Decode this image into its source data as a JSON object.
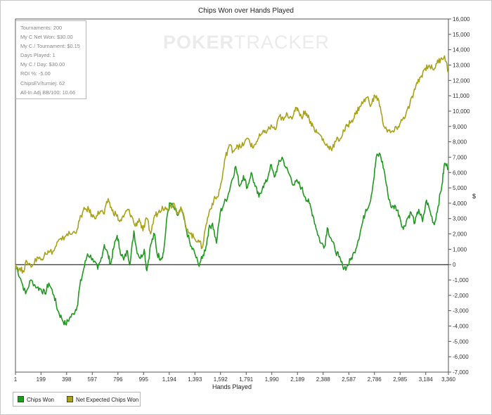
{
  "chart_data": {
    "type": "line",
    "title": "Chips Won over Hands Played",
    "xlabel": "Hands Played",
    "ylabel": "$",
    "xlim": [
      1,
      3360
    ],
    "ylim": [
      -7000,
      16000
    ],
    "x_ticks": [
      1,
      199,
      398,
      597,
      796,
      995,
      1194,
      1393,
      1592,
      1791,
      1990,
      2189,
      2388,
      2587,
      2786,
      2985,
      3184,
      3360
    ],
    "x_tick_labels": [
      "1",
      "199",
      "398",
      "597",
      "796",
      "995",
      "1,194",
      "1,393",
      "1,592",
      "1,791",
      "1,990",
      "2,189",
      "2,388",
      "2,587",
      "2,786",
      "2,985",
      "3,184",
      "3,360"
    ],
    "y_ticks": [
      -7000,
      -6000,
      -5000,
      -4000,
      -3000,
      -2000,
      -1000,
      0,
      1000,
      2000,
      3000,
      4000,
      5000,
      6000,
      7000,
      8000,
      9000,
      10000,
      11000,
      12000,
      13000,
      14000,
      15000,
      16000
    ],
    "y_tick_labels": [
      "-7,000",
      "-6,000",
      "-5,000",
      "-4,000",
      "-3,000",
      "-2,000",
      "-1,000",
      "0",
      "1,000",
      "2,000",
      "3,000",
      "4,000",
      "5,000",
      "6,000",
      "7,000",
      "8,000",
      "9,000",
      "10,000",
      "11,000",
      "12,000",
      "13,000",
      "14,000",
      "15,000",
      "16,000"
    ],
    "grid": false,
    "zero_line": true,
    "legend_position": "bottom-left",
    "series": [
      {
        "name": "Chips Won",
        "color": "#1f9a1f",
        "points": [
          [
            1,
            0
          ],
          [
            40,
            -900
          ],
          [
            80,
            -1900
          ],
          [
            120,
            -1000
          ],
          [
            170,
            -1500
          ],
          [
            200,
            -1600
          ],
          [
            230,
            -1900
          ],
          [
            260,
            -1200
          ],
          [
            300,
            -2000
          ],
          [
            330,
            -3000
          ],
          [
            360,
            -3500
          ],
          [
            390,
            -3900
          ],
          [
            420,
            -3500
          ],
          [
            450,
            -3200
          ],
          [
            480,
            -2700
          ],
          [
            500,
            -1400
          ],
          [
            530,
            -300
          ],
          [
            560,
            700
          ],
          [
            600,
            400
          ],
          [
            640,
            -300
          ],
          [
            660,
            200
          ],
          [
            690,
            1300
          ],
          [
            720,
            600
          ],
          [
            740,
            0
          ],
          [
            760,
            1000
          ],
          [
            790,
            1900
          ],
          [
            810,
            1000
          ],
          [
            840,
            300
          ],
          [
            870,
            900
          ],
          [
            890,
            0
          ],
          [
            920,
            2200
          ],
          [
            940,
            1000
          ],
          [
            970,
            400
          ],
          [
            1000,
            1000
          ],
          [
            1020,
            -400
          ],
          [
            1050,
            1300
          ],
          [
            1080,
            2000
          ],
          [
            1100,
            700
          ],
          [
            1130,
            400
          ],
          [
            1150,
            800
          ],
          [
            1180,
            3300
          ],
          [
            1200,
            4000
          ],
          [
            1230,
            3700
          ],
          [
            1260,
            3200
          ],
          [
            1290,
            3600
          ],
          [
            1320,
            2500
          ],
          [
            1360,
            1200
          ],
          [
            1390,
            800
          ],
          [
            1420,
            0
          ],
          [
            1450,
            400
          ],
          [
            1480,
            1200
          ],
          [
            1500,
            2300
          ],
          [
            1530,
            2700
          ],
          [
            1560,
            1400
          ],
          [
            1590,
            3400
          ],
          [
            1620,
            4000
          ],
          [
            1650,
            4500
          ],
          [
            1680,
            5500
          ],
          [
            1710,
            6400
          ],
          [
            1740,
            5100
          ],
          [
            1770,
            5800
          ],
          [
            1800,
            5000
          ],
          [
            1830,
            6000
          ],
          [
            1860,
            5100
          ],
          [
            1890,
            4400
          ],
          [
            1920,
            5100
          ],
          [
            1950,
            5400
          ],
          [
            1980,
            6500
          ],
          [
            2010,
            5700
          ],
          [
            2040,
            6500
          ],
          [
            2070,
            7000
          ],
          [
            2100,
            6300
          ],
          [
            2130,
            5800
          ],
          [
            2160,
            5200
          ],
          [
            2190,
            5400
          ],
          [
            2220,
            5000
          ],
          [
            2250,
            4400
          ],
          [
            2280,
            4000
          ],
          [
            2310,
            3200
          ],
          [
            2340,
            2200
          ],
          [
            2370,
            1400
          ],
          [
            2400,
            1200
          ],
          [
            2420,
            2400
          ],
          [
            2450,
            1700
          ],
          [
            2480,
            1000
          ],
          [
            2510,
            500
          ],
          [
            2540,
            -100
          ],
          [
            2570,
            -200
          ],
          [
            2600,
            300
          ],
          [
            2630,
            800
          ],
          [
            2660,
            1600
          ],
          [
            2690,
            2600
          ],
          [
            2720,
            3600
          ],
          [
            2750,
            4000
          ],
          [
            2780,
            5500
          ],
          [
            2800,
            7000
          ],
          [
            2830,
            7200
          ],
          [
            2860,
            6200
          ],
          [
            2890,
            4600
          ],
          [
            2920,
            3700
          ],
          [
            2950,
            3800
          ],
          [
            2980,
            3200
          ],
          [
            3010,
            2300
          ],
          [
            3040,
            3000
          ],
          [
            3070,
            3400
          ],
          [
            3100,
            2700
          ],
          [
            3130,
            3600
          ],
          [
            3160,
            2800
          ],
          [
            3190,
            4200
          ],
          [
            3220,
            3400
          ],
          [
            3250,
            2600
          ],
          [
            3280,
            3800
          ],
          [
            3310,
            5200
          ],
          [
            3330,
            6600
          ],
          [
            3360,
            6300
          ]
        ]
      },
      {
        "name": "Net Expected Chips Won",
        "color": "#a9a21a",
        "points": [
          [
            1,
            0
          ],
          [
            30,
            -300
          ],
          [
            60,
            -400
          ],
          [
            90,
            200
          ],
          [
            130,
            -100
          ],
          [
            170,
            500
          ],
          [
            200,
            300
          ],
          [
            230,
            800
          ],
          [
            260,
            800
          ],
          [
            300,
            900
          ],
          [
            330,
            1500
          ],
          [
            360,
            1600
          ],
          [
            400,
            2000
          ],
          [
            440,
            2000
          ],
          [
            480,
            2300
          ],
          [
            510,
            3200
          ],
          [
            540,
            3600
          ],
          [
            570,
            3600
          ],
          [
            600,
            3100
          ],
          [
            630,
            3200
          ],
          [
            660,
            3500
          ],
          [
            690,
            3300
          ],
          [
            720,
            4300
          ],
          [
            750,
            3500
          ],
          [
            780,
            3300
          ],
          [
            810,
            2800
          ],
          [
            840,
            3100
          ],
          [
            870,
            3600
          ],
          [
            900,
            3200
          ],
          [
            930,
            2500
          ],
          [
            960,
            3000
          ],
          [
            990,
            2200
          ],
          [
            1020,
            3000
          ],
          [
            1050,
            2000
          ],
          [
            1080,
            3200
          ],
          [
            1110,
            3400
          ],
          [
            1140,
            3800
          ],
          [
            1170,
            3600
          ],
          [
            1200,
            3800
          ],
          [
            1230,
            4000
          ],
          [
            1260,
            3400
          ],
          [
            1290,
            3600
          ],
          [
            1320,
            2600
          ],
          [
            1360,
            2000
          ],
          [
            1390,
            1700
          ],
          [
            1420,
            1600
          ],
          [
            1450,
            1100
          ],
          [
            1480,
            2600
          ],
          [
            1510,
            3600
          ],
          [
            1540,
            4200
          ],
          [
            1570,
            4400
          ],
          [
            1600,
            5400
          ],
          [
            1630,
            7000
          ],
          [
            1660,
            7800
          ],
          [
            1690,
            7400
          ],
          [
            1720,
            7800
          ],
          [
            1750,
            7600
          ],
          [
            1780,
            8000
          ],
          [
            1810,
            8200
          ],
          [
            1840,
            7600
          ],
          [
            1870,
            8000
          ],
          [
            1900,
            8400
          ],
          [
            1930,
            8600
          ],
          [
            1960,
            8800
          ],
          [
            1990,
            9000
          ],
          [
            2020,
            8800
          ],
          [
            2050,
            9700
          ],
          [
            2080,
            9400
          ],
          [
            2110,
            9800
          ],
          [
            2140,
            9600
          ],
          [
            2170,
            10000
          ],
          [
            2190,
            10200
          ],
          [
            2220,
            9600
          ],
          [
            2250,
            10000
          ],
          [
            2280,
            9500
          ],
          [
            2310,
            9000
          ],
          [
            2340,
            8600
          ],
          [
            2370,
            8400
          ],
          [
            2400,
            7900
          ],
          [
            2430,
            7700
          ],
          [
            2460,
            7600
          ],
          [
            2490,
            8100
          ],
          [
            2520,
            8200
          ],
          [
            2550,
            8700
          ],
          [
            2580,
            9100
          ],
          [
            2610,
            9400
          ],
          [
            2640,
            9800
          ],
          [
            2670,
            10300
          ],
          [
            2700,
            10600
          ],
          [
            2730,
            10900
          ],
          [
            2760,
            10400
          ],
          [
            2790,
            11000
          ],
          [
            2820,
            10700
          ],
          [
            2850,
            9300
          ],
          [
            2880,
            8800
          ],
          [
            2910,
            8600
          ],
          [
            2940,
            8700
          ],
          [
            2970,
            9000
          ],
          [
            3000,
            9400
          ],
          [
            3030,
            9800
          ],
          [
            3060,
            10400
          ],
          [
            3090,
            11200
          ],
          [
            3120,
            11800
          ],
          [
            3150,
            12300
          ],
          [
            3180,
            12800
          ],
          [
            3210,
            13000
          ],
          [
            3240,
            12700
          ],
          [
            3270,
            13100
          ],
          [
            3300,
            13400
          ],
          [
            3330,
            13600
          ],
          [
            3360,
            12500
          ]
        ]
      }
    ]
  },
  "stats": {
    "lines": [
      "Tournaments: 200",
      "My C Net Won: $30.00",
      "My C / Tournament: $0.15",
      "Days Played: 1",
      "My C / Day: $30.00",
      "ROI %: -5.00",
      "ChipsEV/turniej: 62",
      "All-In Adj BB/100: 10.66"
    ]
  },
  "watermark": {
    "part_a": "POKER",
    "part_b": "TRACKER"
  }
}
